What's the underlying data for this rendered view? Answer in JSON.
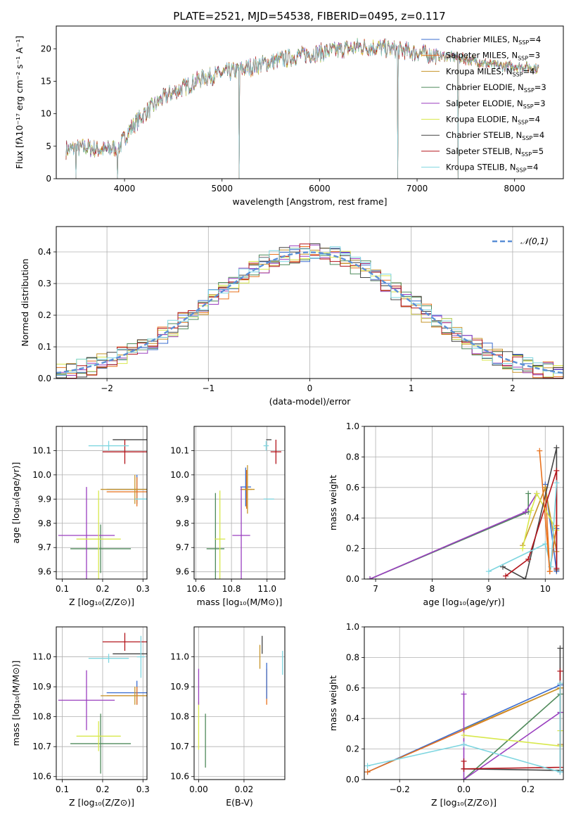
{
  "figure": {
    "title": "PLATE=2521, MJD=54538, FIBERID=0495, z=0.117"
  },
  "models": [
    {
      "name": "Chabrier MILES",
      "nssp": "4",
      "color": "#3a6ccf"
    },
    {
      "name": "Salpeter MILES",
      "nssp": "3",
      "color": "#e8711c"
    },
    {
      "name": "Kroupa MILES",
      "nssp": "4",
      "color": "#c6942a"
    },
    {
      "name": "Chabrier ELODIE",
      "nssp": "3",
      "color": "#4f8a5b"
    },
    {
      "name": "Salpeter ELODIE",
      "nssp": "3",
      "color": "#9a3fbf"
    },
    {
      "name": "Kroupa ELODIE",
      "nssp": "4",
      "color": "#d8e84c"
    },
    {
      "name": "Chabrier STELIB",
      "nssp": "4",
      "color": "#444444"
    },
    {
      "name": "Salpeter STELIB",
      "nssp": "5",
      "color": "#b3141b"
    },
    {
      "name": "Kroupa STELIB",
      "nssp": "4",
      "color": "#7fd6e0"
    }
  ],
  "chart_data": [
    {
      "id": "spectrum",
      "type": "line",
      "xlabel": "wavelength [Angstrom, rest frame]",
      "ylabel": "Flux [fλ10⁻¹⁷ erg cm⁻² s⁻¹ A⁻¹]",
      "xlim": [
        3300,
        8500
      ],
      "ylim": [
        0,
        23.5
      ],
      "xticks": [
        4000,
        5000,
        6000,
        7000,
        8000
      ],
      "yticks": [
        0,
        5,
        10,
        15,
        20
      ],
      "continuum": [
        [
          3400,
          4.5
        ],
        [
          3600,
          4.8
        ],
        [
          3800,
          4.4
        ],
        [
          3950,
          5.0
        ],
        [
          4050,
          7.5
        ],
        [
          4200,
          10.0
        ],
        [
          4400,
          12.5
        ],
        [
          4600,
          14.0
        ],
        [
          4800,
          15.5
        ],
        [
          5000,
          16.2
        ],
        [
          5200,
          16.8
        ],
        [
          5400,
          17.6
        ],
        [
          5600,
          18.3
        ],
        [
          5800,
          19.0
        ],
        [
          6000,
          19.4
        ],
        [
          6200,
          19.8
        ],
        [
          6400,
          20.3
        ],
        [
          6600,
          20.2
        ],
        [
          6800,
          19.8
        ],
        [
          7000,
          19.4
        ],
        [
          7200,
          19.0
        ],
        [
          7400,
          18.7
        ],
        [
          7600,
          18.1
        ],
        [
          7800,
          17.4
        ],
        [
          8000,
          17.3
        ],
        [
          8250,
          17.0
        ]
      ],
      "dips": [
        3500,
        3930,
        5175,
        6800,
        7420
      ],
      "legend": "upper-right"
    },
    {
      "id": "residuals",
      "type": "histogram",
      "xlabel": "(data-model)/error",
      "ylabel": "Normed distribution",
      "xlim": [
        -2.5,
        2.5
      ],
      "ylim": [
        0,
        0.48
      ],
      "xticks": [
        -2,
        -1,
        0,
        1,
        2
      ],
      "yticks": [
        0,
        0.1,
        0.2,
        0.3,
        0.4
      ],
      "bin_width": 0.1,
      "reference": {
        "label": "𝒩(0,1)",
        "mean": 0,
        "sigma": 1
      }
    },
    {
      "id": "age_vs_Z",
      "type": "errorbar",
      "xlabel": "Z [log₁₀(Z/Z⊙)]",
      "ylabel": "age  [log₁₀(age/yr)]",
      "xlim": [
        0.085,
        0.31
      ],
      "ylim": [
        9.57,
        10.2
      ],
      "xticks": [
        0.1,
        0.2,
        0.3
      ],
      "yticks": [
        9.6,
        9.7,
        9.8,
        9.9,
        10.0,
        10.1
      ],
      "points": [
        {
          "m": 0,
          "x": 0.285,
          "y": 9.94,
          "xerr": 0.075,
          "yerr": 0.06
        },
        {
          "m": 1,
          "x": 0.285,
          "y": 9.93,
          "xerr": 0.075,
          "yerr": 0.06
        },
        {
          "m": 2,
          "x": 0.28,
          "y": 9.94,
          "xerr": 0.085,
          "yerr": 0.06
        },
        {
          "m": 3,
          "x": 0.195,
          "y": 9.695,
          "xerr": 0.075,
          "yerr": 0.1
        },
        {
          "m": 4,
          "x": 0.16,
          "y": 9.75,
          "xerr": 0.07,
          "yerr": 0.2
        },
        {
          "m": 5,
          "x": 0.19,
          "y": 9.735,
          "xerr": 0.055,
          "yerr": 0.2
        },
        {
          "m": 6,
          "x": 0.285,
          "y": 10.145,
          "xerr": 0.06,
          "yerr": 0.0
        },
        {
          "m": 7,
          "x": 0.255,
          "y": 10.095,
          "xerr": 0.055,
          "yerr": 0.05
        },
        {
          "m": 8,
          "x": 0.215,
          "y": 10.12,
          "xerr": 0.05,
          "yerr": 0.02
        },
        {
          "m": 8,
          "x": 0.295,
          "y": 9.9,
          "xerr": 0.015,
          "yerr": 0.0
        }
      ]
    },
    {
      "id": "age_vs_mass",
      "type": "errorbar",
      "xlabel": "mass [log₁₀(M/M⊙)]",
      "ylabel": "",
      "xlim": [
        10.59,
        11.1
      ],
      "ylim": [
        9.57,
        10.2
      ],
      "xticks": [
        10.6,
        10.8,
        11.0
      ],
      "yticks": [
        9.6,
        9.7,
        9.8,
        9.9,
        10.0,
        10.1
      ],
      "points": [
        {
          "m": 0,
          "x": 10.88,
          "y": 9.95,
          "xerr": 0.03,
          "yerr": 0.08
        },
        {
          "m": 1,
          "x": 10.885,
          "y": 9.94,
          "xerr": 0.03,
          "yerr": 0.08
        },
        {
          "m": 2,
          "x": 10.89,
          "y": 9.94,
          "xerr": 0.04,
          "yerr": 0.1
        },
        {
          "m": 3,
          "x": 10.71,
          "y": 9.695,
          "xerr": 0.05,
          "yerr": 0.23
        },
        {
          "m": 4,
          "x": 10.855,
          "y": 9.75,
          "xerr": 0.05,
          "yerr": 0.2
        },
        {
          "m": 5,
          "x": 10.735,
          "y": 9.735,
          "xerr": 0.03,
          "yerr": 0.2
        },
        {
          "m": 6,
          "x": 11.01,
          "y": 10.145,
          "xerr": 0.015,
          "yerr": 0.0
        },
        {
          "m": 7,
          "x": 11.05,
          "y": 10.095,
          "xerr": 0.03,
          "yerr": 0.05
        },
        {
          "m": 8,
          "x": 10.995,
          "y": 10.12,
          "xerr": 0.015,
          "yerr": 0.02
        },
        {
          "m": 8,
          "x": 11.01,
          "y": 9.9,
          "xerr": 0.03,
          "yerr": 0.0
        }
      ]
    },
    {
      "id": "mass_weight_vs_age",
      "type": "line",
      "xlabel": "age  [log₁₀(age/yr)]",
      "ylabel": "mass weight",
      "xlim": [
        6.8,
        10.32
      ],
      "ylim": [
        0,
        1.0
      ],
      "xticks": [
        7,
        8,
        9,
        10
      ],
      "yticks": [
        0,
        0.2,
        0.4,
        0.6,
        0.8,
        1.0
      ],
      "series": [
        {
          "m": 0,
          "points": [
            [
              10.0,
              0.62
            ],
            [
              10.2,
              0.05
            ],
            [
              10.2,
              0.33
            ]
          ]
        },
        {
          "m": 1,
          "points": [
            [
              10.0,
              0.6
            ],
            [
              10.08,
              0.05
            ],
            [
              10.2,
              0.35
            ]
          ]
        },
        {
          "m": 2,
          "points": [
            [
              9.6,
              0.22
            ],
            [
              10.0,
              0.6
            ],
            [
              10.2,
              0.18
            ]
          ]
        },
        {
          "m": 3,
          "points": [
            [
              6.9,
              0.0
            ],
            [
              9.7,
              0.44
            ],
            [
              9.7,
              0.56
            ]
          ]
        },
        {
          "m": 4,
          "points": [
            [
              6.9,
              0.0
            ],
            [
              9.65,
              0.44
            ],
            [
              9.85,
              0.56
            ]
          ]
        },
        {
          "m": 5,
          "points": [
            [
              9.6,
              0.2
            ],
            [
              9.75,
              0.45
            ],
            [
              9.85,
              0.56
            ],
            [
              10.2,
              0.32
            ]
          ]
        },
        {
          "m": 6,
          "points": [
            [
              9.25,
              0.08
            ],
            [
              9.65,
              0.0
            ],
            [
              10.2,
              0.86
            ],
            [
              10.2,
              0.06
            ]
          ]
        },
        {
          "m": 7,
          "points": [
            [
              9.3,
              0.02
            ],
            [
              9.7,
              0.13
            ],
            [
              10.2,
              0.71
            ],
            [
              10.2,
              0.07
            ]
          ]
        },
        {
          "m": 8,
          "points": [
            [
              9.0,
              0.05
            ],
            [
              10.0,
              0.23
            ],
            [
              10.1,
              0.08
            ],
            [
              10.2,
              0.63
            ]
          ]
        },
        {
          "m": 1,
          "points": [
            [
              9.9,
              0.84
            ],
            [
              10.08,
              0.05
            ]
          ]
        }
      ]
    },
    {
      "id": "mass_vs_Z",
      "type": "errorbar",
      "xlabel": "Z [log₁₀(Z/Z⊙)]",
      "ylabel": "mass [log₁₀(M/M⊙)]",
      "xlim": [
        0.085,
        0.31
      ],
      "ylim": [
        10.59,
        11.1
      ],
      "xticks": [
        0.1,
        0.2,
        0.3
      ],
      "yticks": [
        10.6,
        10.7,
        10.8,
        10.9,
        11.0
      ],
      "points": [
        {
          "m": 0,
          "x": 0.285,
          "y": 10.88,
          "xerr": 0.075,
          "yerr": 0.04
        },
        {
          "m": 1,
          "x": 0.285,
          "y": 10.87,
          "xerr": 0.075,
          "yerr": 0.03
        },
        {
          "m": 2,
          "x": 0.28,
          "y": 10.87,
          "xerr": 0.085,
          "yerr": 0.03
        },
        {
          "m": 3,
          "x": 0.195,
          "y": 10.71,
          "xerr": 0.075,
          "yerr": 0.1
        },
        {
          "m": 4,
          "x": 0.16,
          "y": 10.855,
          "xerr": 0.07,
          "yerr": 0.1
        },
        {
          "m": 5,
          "x": 0.19,
          "y": 10.735,
          "xerr": 0.055,
          "yerr": 0.05
        },
        {
          "m": 6,
          "x": 0.285,
          "y": 11.01,
          "xerr": 0.06,
          "yerr": 0.0
        },
        {
          "m": 7,
          "x": 0.255,
          "y": 11.05,
          "xerr": 0.055,
          "yerr": 0.03
        },
        {
          "m": 8,
          "x": 0.215,
          "y": 10.995,
          "xerr": 0.05,
          "yerr": 0.015
        },
        {
          "m": 8,
          "x": 0.295,
          "y": 11.0,
          "xerr": 0.01,
          "yerr": 0.07
        }
      ]
    },
    {
      "id": "mass_vs_ebv",
      "type": "errorbar",
      "xlabel": "E(B-V)",
      "ylabel": "",
      "xlim": [
        -0.002,
        0.038
      ],
      "ylim": [
        10.59,
        11.1
      ],
      "xticks": [
        0.0,
        0.02
      ],
      "yticks": [
        10.6,
        10.7,
        10.8,
        10.9,
        11.0
      ],
      "points": [
        {
          "m": 5,
          "x": 0.0,
          "y": 10.77,
          "xerr": 0.0,
          "yerr": 0.08
        },
        {
          "m": 4,
          "x": 0.0,
          "y": 10.9,
          "xerr": 0.0,
          "yerr": 0.06
        },
        {
          "m": 3,
          "x": 0.003,
          "y": 10.72,
          "xerr": 0.0,
          "yerr": 0.09
        },
        {
          "m": 1,
          "x": 0.03,
          "y": 10.9,
          "xerr": 0.0,
          "yerr": 0.06
        },
        {
          "m": 0,
          "x": 0.03,
          "y": 10.92,
          "xerr": 0.0,
          "yerr": 0.06
        },
        {
          "m": 6,
          "x": 0.028,
          "y": 11.04,
          "xerr": 0.0,
          "yerr": 0.03
        },
        {
          "m": 8,
          "x": 0.037,
          "y": 10.98,
          "xerr": 0.0,
          "yerr": 0.04
        },
        {
          "m": 2,
          "x": 0.027,
          "y": 11.0,
          "xerr": 0.0,
          "yerr": 0.04
        }
      ]
    },
    {
      "id": "mass_weight_vs_Z",
      "type": "line",
      "xlabel": "Z [log₁₀(Z/Z⊙)]",
      "ylabel": "mass weight",
      "xlim": [
        -0.31,
        0.31
      ],
      "ylim": [
        0,
        1.0
      ],
      "xticks": [
        -0.2,
        0.0,
        0.2
      ],
      "yticks": [
        0,
        0.2,
        0.4,
        0.6,
        0.8,
        1.0
      ],
      "series": [
        {
          "m": 0,
          "points": [
            [
              -0.3,
              0.05
            ],
            [
              0.3,
              0.62
            ],
            [
              0.3,
              0.05
            ]
          ]
        },
        {
          "m": 1,
          "points": [
            [
              -0.3,
              0.05
            ],
            [
              0.3,
              0.6
            ],
            [
              0.3,
              0.06
            ]
          ]
        },
        {
          "m": 2,
          "points": [
            [
              0.0,
              0.33
            ],
            [
              0.3,
              0.6
            ],
            [
              0.3,
              0.23
            ]
          ]
        },
        {
          "m": 3,
          "points": [
            [
              0.0,
              0.0
            ],
            [
              0.3,
              0.56
            ],
            [
              0.3,
              0.44
            ]
          ]
        },
        {
          "m": 4,
          "points": [
            [
              0.0,
              0.56
            ],
            [
              0.0,
              0.0
            ],
            [
              0.3,
              0.44
            ]
          ]
        },
        {
          "m": 5,
          "points": [
            [
              0.0,
              0.29
            ],
            [
              0.3,
              0.22
            ],
            [
              0.3,
              0.32
            ]
          ]
        },
        {
          "m": 6,
          "points": [
            [
              0.0,
              0.07
            ],
            [
              0.3,
              0.06
            ],
            [
              0.3,
              0.86
            ]
          ]
        },
        {
          "m": 7,
          "points": [
            [
              0.0,
              0.12
            ],
            [
              0.0,
              0.07
            ],
            [
              0.3,
              0.08
            ],
            [
              0.3,
              0.71
            ]
          ]
        },
        {
          "m": 8,
          "points": [
            [
              -0.3,
              0.09
            ],
            [
              0.0,
              0.23
            ],
            [
              0.3,
              0.05
            ],
            [
              0.3,
              0.63
            ]
          ]
        }
      ]
    }
  ]
}
